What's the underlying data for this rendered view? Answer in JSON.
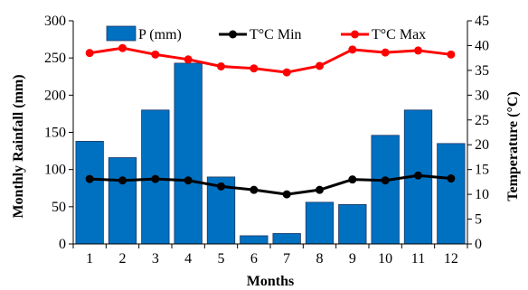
{
  "chart_data": {
    "type": "bar",
    "xlabel": "Months",
    "ylabel_left": "Monthly Rainfall (mm)",
    "ylabel_right": "Temperature (°C)",
    "categories": [
      "1",
      "2",
      "3",
      "4",
      "5",
      "6",
      "7",
      "8",
      "9",
      "10",
      "11",
      "12"
    ],
    "ylim_left": [
      0,
      300
    ],
    "yticks_left": [
      "0",
      "50",
      "100",
      "150",
      "200",
      "250",
      "300"
    ],
    "ylim_right": [
      0,
      45
    ],
    "yticks_right": [
      "0",
      "5",
      "10",
      "15",
      "20",
      "25",
      "30",
      "35",
      "40",
      "45"
    ],
    "grid": false,
    "legend_position": "top",
    "series": [
      {
        "name": "P (mm)",
        "type": "bar",
        "axis": "left",
        "color": "#0070c0",
        "values": [
          138,
          116,
          180,
          243,
          90,
          11,
          14,
          56,
          53,
          146,
          180,
          135
        ]
      },
      {
        "name": "T°C Min",
        "type": "line",
        "axis": "right",
        "color": "#000000",
        "values": [
          13.1,
          12.8,
          13.1,
          12.8,
          11.6,
          10.9,
          10.0,
          10.9,
          13.0,
          12.8,
          13.8,
          13.2
        ]
      },
      {
        "name": "T°C Max",
        "type": "line",
        "axis": "right",
        "color": "#ff0000",
        "values": [
          38.5,
          39.5,
          38.2,
          37.2,
          35.8,
          35.4,
          34.6,
          35.9,
          39.2,
          38.6,
          39.0,
          38.2
        ]
      }
    ]
  }
}
